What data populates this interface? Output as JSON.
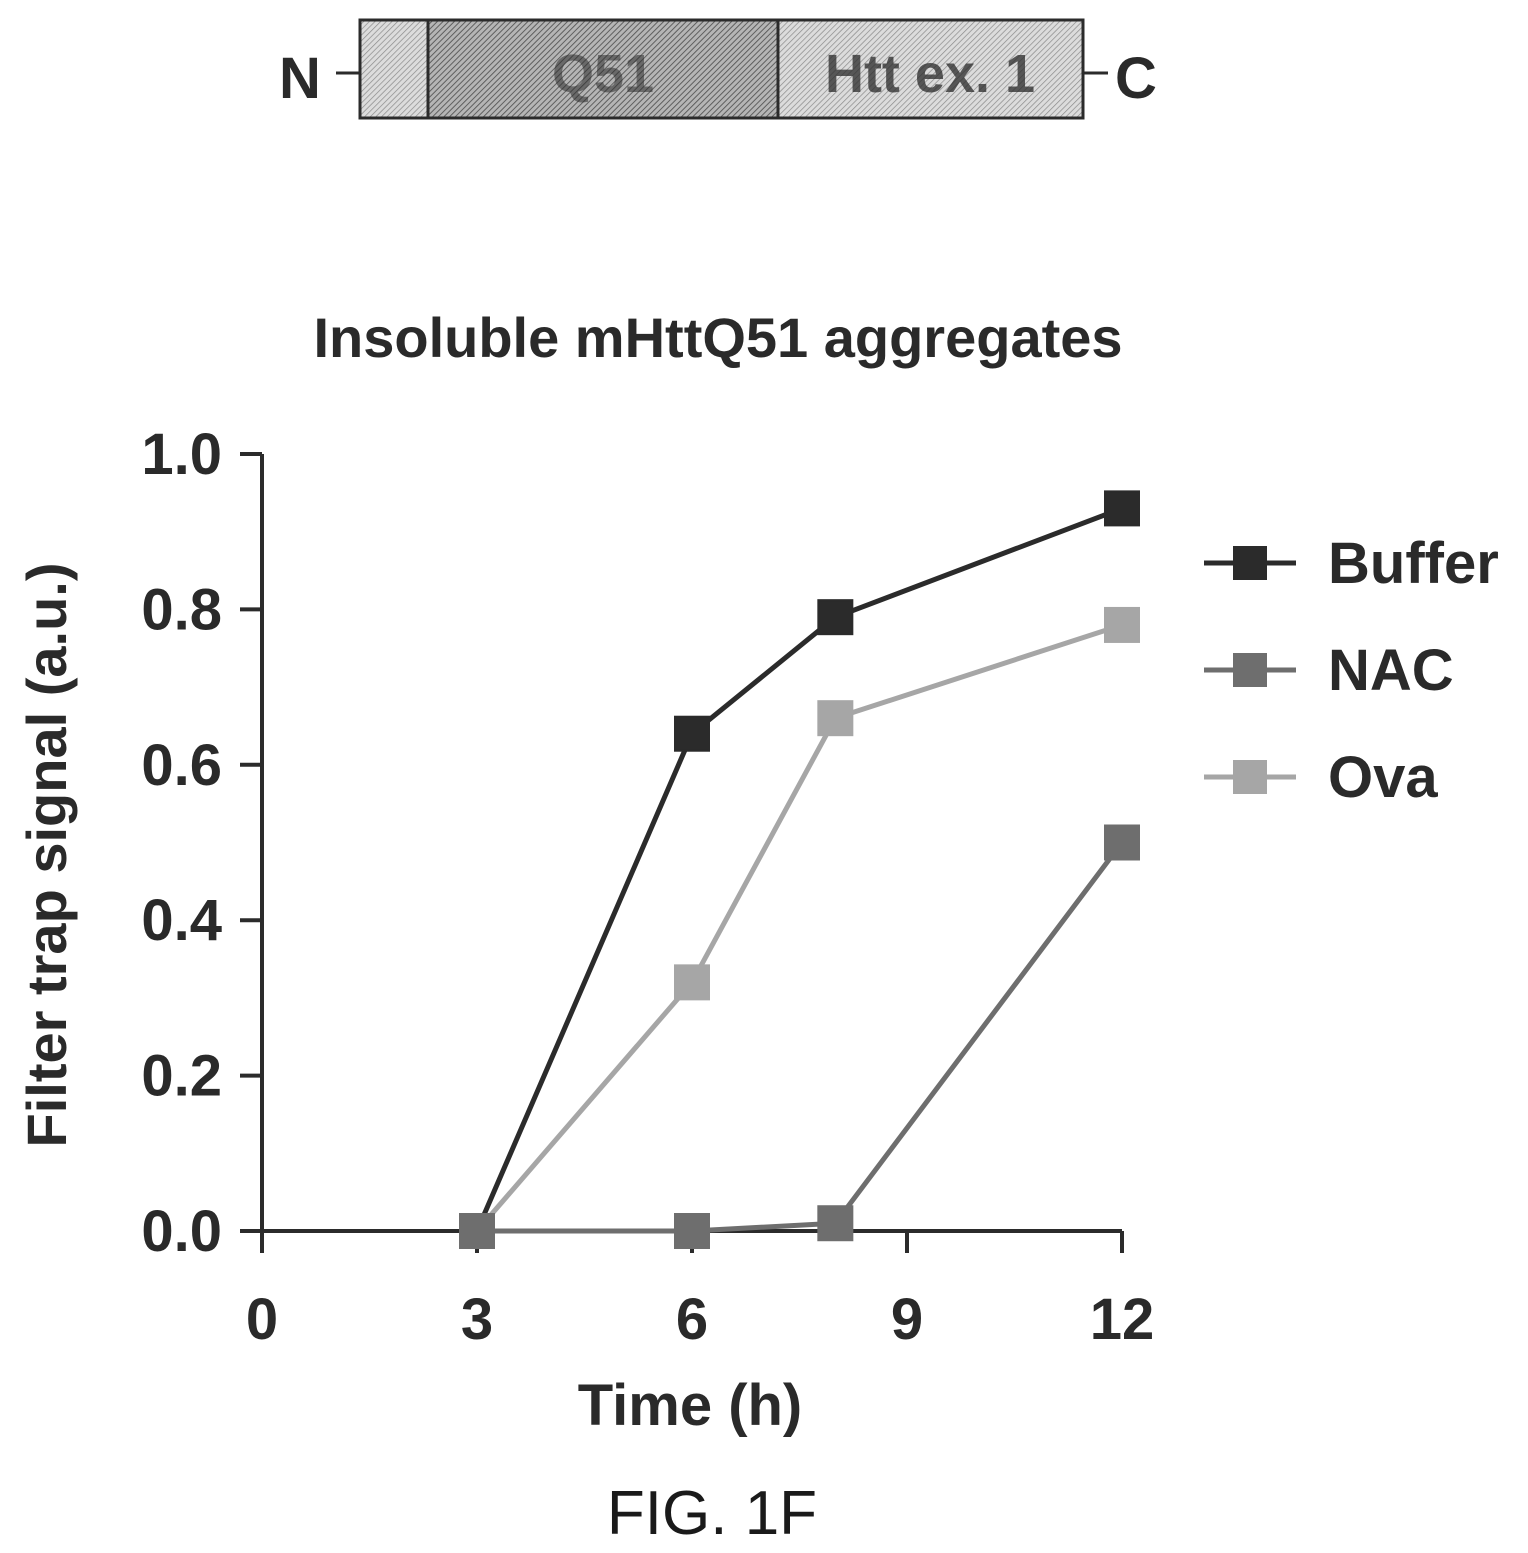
{
  "construct": {
    "n_label": "N",
    "c_label": "C",
    "segment_q": "Q51",
    "segment_htt": "Htt ex. 1"
  },
  "figure_label": "FIG. 1F",
  "colors": {
    "Buffer": "#2b2b2b",
    "NAC": "#6e6e6e",
    "Ova": "#a6a6a6",
    "axis": "#2b2b2b",
    "construct_fill": "#c9c9c9"
  },
  "chart_data": {
    "type": "line",
    "title": "Insoluble mHttQ51 aggregates",
    "xlabel": "Time (h)",
    "ylabel": "Filter trap signal (a.u.)",
    "xlim": [
      0,
      12
    ],
    "ylim": [
      0,
      1.0
    ],
    "xticks": [
      "0",
      "3",
      "6",
      "9",
      "12"
    ],
    "yticks": [
      "0.0",
      "0.2",
      "0.4",
      "0.6",
      "0.8",
      "1.0"
    ],
    "legend": "right",
    "grid": false,
    "series": [
      {
        "name": "Buffer",
        "x": [
          3,
          6,
          8,
          12
        ],
        "y": [
          0.0,
          0.64,
          0.79,
          0.93
        ]
      },
      {
        "name": "NAC",
        "x": [
          3,
          6,
          8,
          12
        ],
        "y": [
          0.0,
          0.0,
          0.01,
          0.5
        ]
      },
      {
        "name": "Ova",
        "x": [
          3,
          6,
          8,
          12
        ],
        "y": [
          0.0,
          0.32,
          0.66,
          0.78
        ]
      }
    ]
  }
}
